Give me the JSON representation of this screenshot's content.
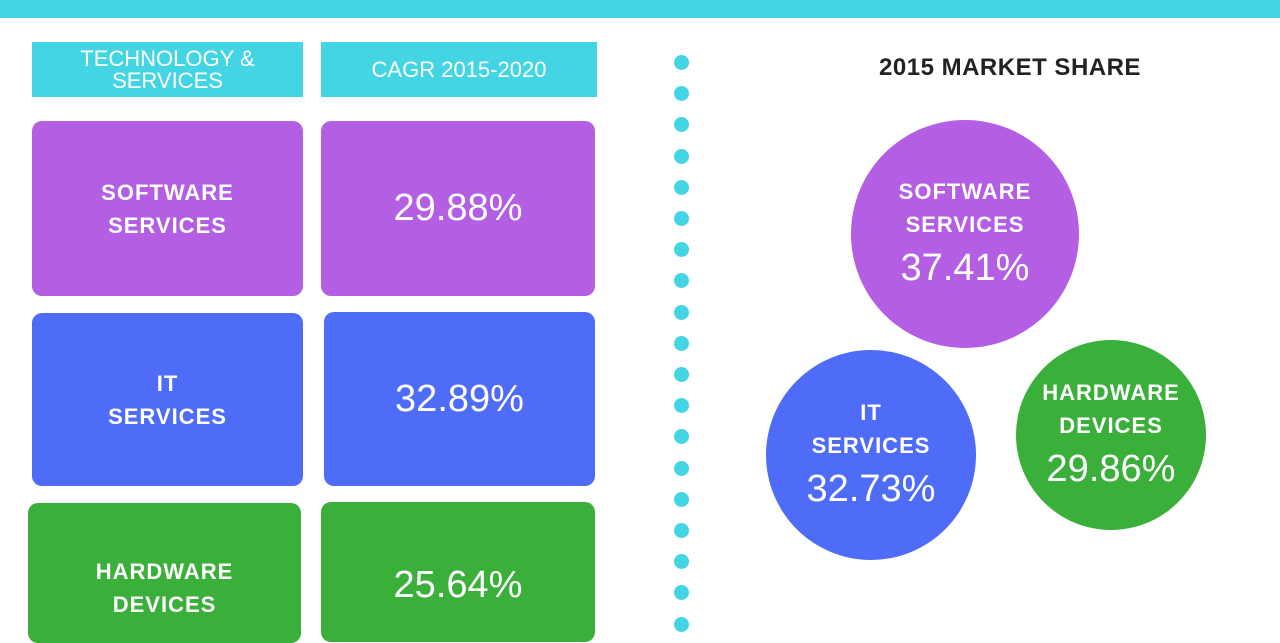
{
  "chart_data": [
    {
      "type": "table",
      "columns": [
        "TECHNOLOGY & SERVICES",
        "CAGR 2015-2020"
      ],
      "rows": [
        {
          "category": "SOFTWARE SERVICES",
          "category_lines": [
            "SOFTWARE",
            "SERVICES"
          ],
          "value": 29.88,
          "label": "29.88%",
          "color": "#b35ee3"
        },
        {
          "category": "IT SERVICES",
          "category_lines": [
            "IT",
            "SERVICES"
          ],
          "value": 32.89,
          "label": "32.89%",
          "color": "#4e6cf8"
        },
        {
          "category": "HARDWARE DEVICES",
          "category_lines": [
            "HARDWARE",
            "DEVICES"
          ],
          "value": 25.64,
          "label": "25.64%",
          "color": "#3ab03a"
        }
      ]
    },
    {
      "type": "bubble",
      "title": "2015 MARKET SHARE",
      "series": [
        {
          "name": "SOFTWARE SERVICES",
          "name_lines": [
            "SOFTWARE",
            "SERVICES"
          ],
          "value": 37.41,
          "label": "37.41%",
          "color": "#b35ee3"
        },
        {
          "name": "IT SERVICES",
          "name_lines": [
            "IT",
            "SERVICES"
          ],
          "value": 32.73,
          "label": "32.73%",
          "color": "#4e6cf8"
        },
        {
          "name": "HARDWARE DEVICES",
          "name_lines": [
            "HARDWARE",
            "DEVICES"
          ],
          "value": 29.86,
          "label": "29.86%",
          "color": "#3ab03a"
        }
      ]
    }
  ],
  "colors": {
    "accent": "#43d5e3"
  }
}
